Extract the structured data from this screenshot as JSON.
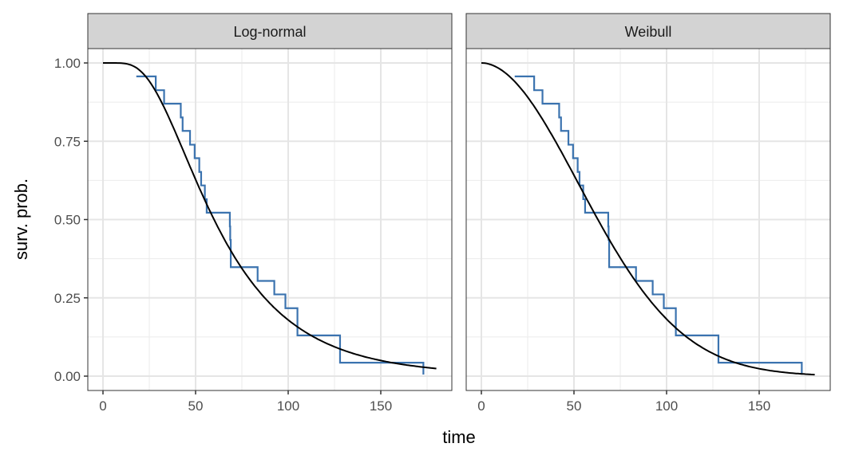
{
  "chart_data": {
    "type": "line",
    "xlabel": "time",
    "ylabel": "surv. prob.",
    "xlim": [
      -8,
      188
    ],
    "ylim": [
      -0.04,
      1.04
    ],
    "x_ticks": [
      0,
      50,
      100,
      150
    ],
    "x_tick_labels": [
      "0",
      "50",
      "100",
      "150"
    ],
    "y_ticks": [
      0,
      0.25,
      0.5,
      0.75,
      1.0
    ],
    "y_tick_labels": [
      "0.00",
      "0.25",
      "0.50",
      "0.75",
      "1.00"
    ],
    "grid": true,
    "colors": {
      "km": "#3B73AF",
      "fit": "#000000",
      "strip": "#D3D3D3"
    },
    "km_steps": {
      "x": [
        18,
        28.5,
        33,
        42,
        43,
        47,
        49.5,
        52,
        53,
        55,
        56,
        68.5,
        68.7,
        69,
        83.5,
        92.5,
        98.5,
        105,
        128,
        173
      ],
      "y": [
        0.957,
        0.913,
        0.87,
        0.826,
        0.783,
        0.739,
        0.696,
        0.652,
        0.609,
        0.565,
        0.522,
        0.478,
        0.435,
        0.348,
        0.304,
        0.261,
        0.217,
        0.13,
        0.043,
        0.005
      ]
    },
    "panels": [
      {
        "title": "Log-normal",
        "model": "lognormal",
        "params": {
          "meanlog": 4.094,
          "sdlog": 0.557
        },
        "x_end": 180
      },
      {
        "title": "Weibull",
        "model": "weibull",
        "params": {
          "shape": 1.94,
          "scale": 76
        },
        "x_end": 180
      }
    ]
  }
}
